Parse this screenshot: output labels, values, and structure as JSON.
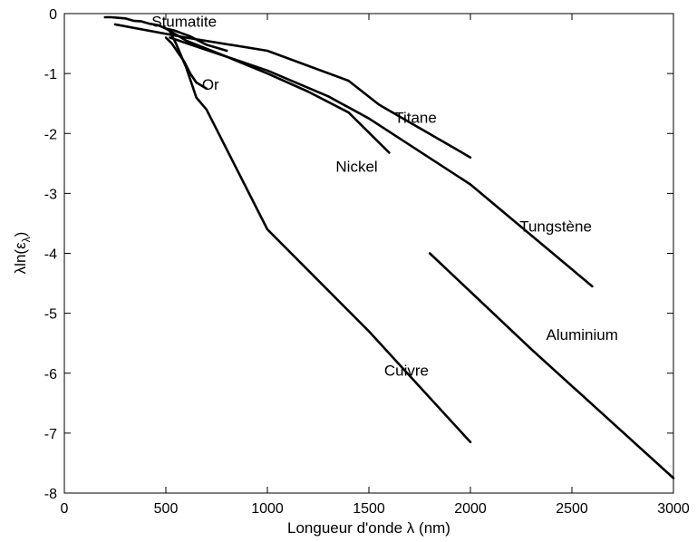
{
  "chart_data": {
    "type": "line",
    "title": "",
    "xlabel": "Longueur d'onde λ (nm)",
    "ylabel_main": "λln(ε",
    "ylabel_sub": "λ",
    "ylabel_close": ")",
    "xlim": [
      0,
      3000
    ],
    "ylim": [
      -8,
      0
    ],
    "xticks": [
      0,
      500,
      1000,
      1500,
      2000,
      2500,
      3000
    ],
    "yticks": [
      0,
      -1,
      -2,
      -3,
      -4,
      -5,
      -6,
      -7,
      -8
    ],
    "grid": false,
    "legend": "none",
    "line_color": "#000000",
    "series": [
      {
        "name": "Stumatite",
        "x": [
          200,
          230,
          260,
          300,
          340,
          380,
          420,
          460,
          500,
          540,
          580,
          620,
          660,
          700,
          740,
          800
        ],
        "y": [
          -0.06,
          -0.06,
          -0.07,
          -0.08,
          -0.12,
          -0.13,
          -0.17,
          -0.19,
          -0.25,
          -0.28,
          -0.33,
          -0.38,
          -0.45,
          -0.52,
          -0.56,
          -0.62
        ],
        "label_at": [
          590,
          -0.13
        ]
      },
      {
        "name": "Or",
        "x": [
          500,
          530,
          560,
          590,
          620,
          650,
          700
        ],
        "y": [
          -0.4,
          -0.5,
          -0.65,
          -0.8,
          -1.0,
          -1.15,
          -1.25
        ],
        "label_at": [
          720,
          -1.18
        ]
      },
      {
        "name": "Cuivre",
        "x": [
          520,
          550,
          600,
          650,
          700,
          1000,
          1500,
          2000
        ],
        "y": [
          -0.3,
          -0.5,
          -0.9,
          -1.4,
          -1.6,
          -3.6,
          -5.3,
          -7.15
        ],
        "label_at": [
          1685,
          -5.95
        ]
      },
      {
        "name": "Nickel",
        "x": [
          500,
          600,
          800,
          1000,
          1200,
          1400,
          1600
        ],
        "y": [
          -0.25,
          -0.45,
          -0.72,
          -1.0,
          -1.3,
          -1.65,
          -2.32
        ],
        "label_at": [
          1440,
          -2.55
        ]
      },
      {
        "name": "Titane",
        "x": [
          250,
          600,
          1000,
          1400,
          1550,
          2000
        ],
        "y": [
          -0.18,
          -0.4,
          -0.62,
          -1.12,
          -1.52,
          -2.4
        ],
        "label_at": [
          1730,
          -1.73
        ]
      },
      {
        "name": "Tungstène",
        "x": [
          520,
          800,
          1000,
          1300,
          1500,
          2000,
          2600
        ],
        "y": [
          -0.4,
          -0.72,
          -0.95,
          -1.38,
          -1.75,
          -2.85,
          -4.55
        ],
        "label_at": [
          2420,
          -3.55
        ]
      },
      {
        "name": "Aluminium",
        "x": [
          1800,
          2300,
          3000
        ],
        "y": [
          -4.0,
          -5.6,
          -7.75
        ],
        "label_at": [
          2550,
          -5.35
        ]
      }
    ]
  }
}
